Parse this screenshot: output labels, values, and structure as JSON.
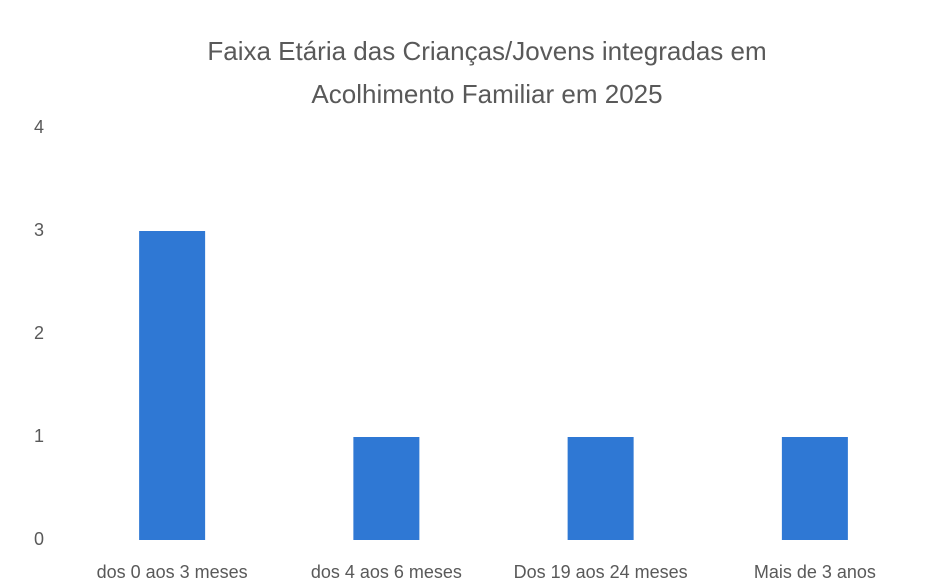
{
  "chart_data": {
    "type": "bar",
    "title": "Faixa Etária das Crianças/Jovens integradas em Acolhimento Familiar em 2025",
    "categories": [
      "dos 0 aos 3 meses",
      "dos 4 aos 6 meses",
      "Dos 19 aos 24 meses",
      "Mais de 3 anos"
    ],
    "values": [
      3,
      1,
      1,
      1
    ],
    "color": "#2f78d4",
    "ylim": [
      0,
      4
    ],
    "yticks": [
      0,
      1,
      2,
      3,
      4
    ],
    "grid": false
  }
}
